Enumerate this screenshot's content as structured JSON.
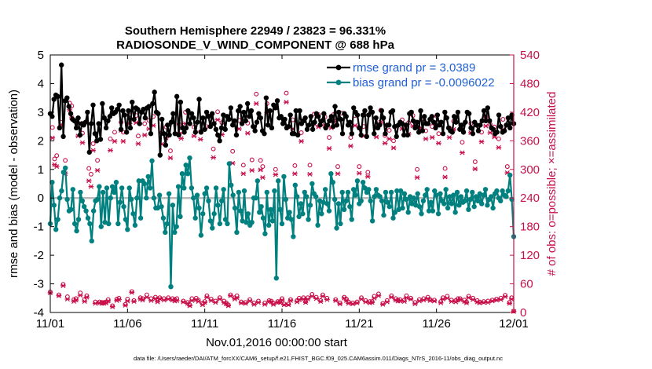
{
  "chart_data": {
    "type": "line",
    "title": "Southern Hemisphere 22949 / 23823 = 96.331%",
    "subtitle": "RADIOSONDE_V_WIND_COMPONENT @ 688 hPa",
    "xlabel": "Nov.01,2016 00:00:00 start",
    "ylabel": "rmse and bias (model - observation)",
    "ylabel_right": "# of obs: o=possible; ×=assimilated",
    "footnote": "data file: /Users/raeder/DAI/ATM_forcXX/CAM6_setup/f.e21.FHIST_BGC.f09_025.CAM6assim.011/Diags_NTrS_2016-11/obs_diag_output.nc",
    "xlim": [
      0,
      30
    ],
    "ylim": [
      -4,
      5
    ],
    "ylim_right": [
      0,
      540
    ],
    "x_tick_labels": [
      "11/01",
      "11/06",
      "11/11",
      "11/16",
      "11/21",
      "11/26",
      "12/01"
    ],
    "y_tick_labels": [
      "5",
      "4",
      "3",
      "2",
      "1",
      "0",
      "-1",
      "-2",
      "-3",
      "-4"
    ],
    "y_right_tick_labels": [
      "540",
      "480",
      "420",
      "360",
      "300",
      "240",
      "180",
      "120",
      "60",
      "0"
    ],
    "legend": [
      "rmse grand pr = 3.0389",
      "bias grand pr = -0.0096022"
    ],
    "colors": {
      "rmse": "#000000",
      "bias": "#00807f",
      "obs": "#c8104a",
      "zero_line": "#b8b8b8"
    },
    "series": [
      {
        "name": "rmse",
        "values": [
          2.95,
          2.85,
          3.45,
          3.6,
          3.55,
          2.45,
          4.65,
          2.15,
          3.4,
          3.5,
          3.2,
          2.95,
          2.75,
          2.7,
          2.45,
          2.8,
          2.2,
          2.6,
          2.55,
          2.65,
          3.0,
          1.6,
          2.6,
          3.25,
          2.25,
          2.0,
          2.6,
          2.05,
          3.3,
          2.8,
          2.45,
          2.7,
          2.85,
          3.15,
          2.95,
          3.0,
          3.1,
          3.25,
          2.4,
          3.05,
          2.9,
          2.3,
          3.05,
          2.45,
          3.35,
          2.75,
          3.15,
          3.1,
          2.6,
          3.0,
          3.1,
          2.8,
          3.15,
          3.2,
          2.25,
          3.3,
          3.7,
          3.0,
          2.95,
          1.5,
          2.75,
          2.25,
          1.85,
          2.55,
          2.2,
          2.65,
          2.95,
          2.25,
          3.55,
          2.2,
          3.35,
          2.45,
          2.3,
          2.45,
          3.05,
          2.6,
          2.95,
          2.8,
          2.3,
          2.65,
          3.45,
          2.3,
          2.8,
          2.4,
          3.0,
          2.85,
          2.5,
          2.95,
          2.6,
          2.4,
          2.2,
          2.0,
          2.45,
          2.9,
          2.4,
          2.85,
          2.75,
          3.15,
          2.55,
          2.7,
          2.2,
          3.05,
          3.2,
          2.6,
          3.0,
          2.7,
          3.3,
          2.85,
          3.05,
          2.5,
          2.35,
          2.65,
          2.95,
          2.8,
          2.35,
          2.25,
          3.5,
          2.55,
          3.05,
          2.45,
          3.25,
          3.15,
          3.4,
          2.8,
          2.85,
          2.6,
          2.75,
          2.45,
          2.5,
          2.9,
          2.25,
          2.25,
          3.05,
          2.2,
          3.05,
          2.6,
          2.7,
          2.8,
          2.4,
          2.55,
          2.85,
          2.4,
          2.65,
          2.95,
          2.85,
          2.55,
          2.7,
          2.95,
          2.45,
          2.55,
          2.7,
          2.85,
          2.5,
          3.2,
          2.55,
          3.0,
          2.75,
          2.25,
          2.95,
          2.85,
          2.55,
          2.65,
          2.25,
          3.15,
          3.0,
          2.9,
          2.45,
          2.2,
          2.9,
          3.05,
          2.15,
          2.9,
          3.15,
          3.0,
          2.25,
          2.8,
          2.45,
          2.55,
          3.05,
          2.8,
          2.25,
          2.55,
          2.55,
          3.0,
          3.05,
          2.5,
          2.15,
          2.55,
          2.65,
          2.6,
          2.2,
          2.55,
          2.2,
          2.95,
          3.0,
          2.7,
          2.45,
          2.65,
          2.3,
          3.05,
          2.35,
          2.85,
          2.6,
          2.6,
          2.75,
          2.85,
          2.65,
          2.45,
          2.9,
          2.55,
          2.65,
          2.25,
          3.0,
          2.8,
          2.45,
          2.35,
          2.3,
          2.85,
          2.65,
          3.0,
          2.4,
          2.55,
          2.3,
          2.65,
          3.0,
          2.95,
          2.45,
          2.25,
          2.65,
          2.55,
          2.35,
          2.55,
          2.7,
          3.05,
          2.7,
          3.15,
          2.7,
          2.45,
          2.4,
          2.25,
          2.3,
          2.9,
          2.5,
          2.3,
          2.35,
          2.55,
          2.8,
          2.45,
          2.9,
          2.6
        ]
      },
      {
        "name": "bias",
        "values": [
          -0.9,
          0.55,
          -0.25,
          -1.1,
          -0.75,
          0.0,
          0.25,
          0.9,
          1.05,
          -0.05,
          -0.45,
          -0.4,
          0.3,
          -0.9,
          -1.15,
          -0.75,
          0.2,
          -0.1,
          -0.3,
          -0.45,
          -0.7,
          -0.9,
          -1.5,
          -0.45,
          -0.1,
          -0.05,
          0.4,
          -1.0,
          0.2,
          -0.85,
          0.35,
          -0.9,
          0.0,
          0.4,
          0.2,
          0.55,
          -0.9,
          -0.15,
          0.35,
          -0.3,
          -0.75,
          -1.1,
          0.35,
          -0.05,
          -0.55,
          -0.95,
          0.0,
          0.6,
          -0.7,
          0.6,
          0.5,
          0.0,
          0.75,
          0.35,
          1.3,
          0.0,
          -0.35,
          -0.35,
          0.1,
          -0.3,
          -0.7,
          -1.2,
          -0.9,
          0.15,
          -3.1,
          -0.25,
          -1.2,
          -1.0,
          0.4,
          -0.65,
          0.85,
          0.35,
          1.15,
          0.85,
          1.4,
          0.35,
          0.0,
          -0.7,
          0.1,
          -0.35,
          -1.3,
          -0.55,
          0.15,
          0.35,
          -0.1,
          -0.8,
          -1.05,
          -0.55,
          0.35,
          -0.25,
          -0.9,
          -0.1,
          0.3,
          -0.75,
          -0.9,
          1.2,
          0.45,
          0.1,
          -0.35,
          -1.2,
          0.2,
          -0.45,
          -0.8,
          0.25,
          -0.85,
          -0.55,
          -0.95,
          -0.85,
          0.0,
          0.0,
          0.6,
          -0.5,
          -0.3,
          -0.7,
          -1.25,
          0.2,
          -0.95,
          -0.4,
          -0.8,
          0.25,
          -2.8,
          0.6,
          -0.4,
          -0.9,
          0.75,
          -0.05,
          -0.7,
          -0.5,
          -0.75,
          -1.35,
          0.45,
          0.05,
          -0.65,
          -0.2,
          -0.55,
          0.2,
          0.05,
          -0.75,
          -0.25,
          0.5,
          0.15,
          0.05,
          -0.95,
          -0.1,
          -0.55,
          -0.15,
          0.3,
          -0.2,
          -0.45,
          0.85,
          0.55,
          -0.05,
          -1.05,
          -0.2,
          -0.9,
          0.2,
          -0.4,
          -0.1,
          0.2,
          -0.3,
          -0.75,
          0.3,
          0.1,
          0.6,
          -0.2,
          -0.1,
          0.55,
          0.35,
          0.2,
          0.3,
          -0.1,
          -0.8,
          0.05,
          0.3,
          0.1,
          0.05,
          -0.1,
          -0.6,
          0.2,
          -0.15,
          -0.3,
          0.2,
          -0.7,
          -0.5,
          0.25,
          -0.4,
          0.25,
          -0.35,
          0.15,
          -0.05,
          -0.5,
          0.05,
          -0.2,
          0.0,
          -0.25,
          0.15,
          -0.3,
          -0.55,
          -0.1,
          0.1,
          0.3,
          -0.45,
          -0.15,
          -0.45,
          0.25,
          0.1,
          -0.55,
          0.15,
          -0.1,
          -0.2,
          0.3,
          -0.35,
          0.05,
          -0.2,
          0.1,
          -0.5,
          0.2,
          -0.25,
          0.05,
          -0.15,
          -0.1,
          0.25,
          -0.4,
          -0.05,
          0.2,
          -0.3,
          0.05,
          -0.1,
          0.15,
          -0.2,
          0.1,
          0.3,
          -0.25,
          -0.05,
          0.05,
          -0.35,
          0.15,
          0.25,
          0.0,
          -0.1,
          0.25,
          0.1,
          0.05,
          0.25,
          0.8,
          -0.05,
          -1.35
        ]
      },
      {
        "name": "possible",
        "values": [
          43,
          388,
          322,
          329,
          37,
          399,
          59,
          319,
          33,
          439,
          433,
          27,
          29,
          397,
          41,
          376,
          27,
          35,
          302,
          290,
          354,
          22,
          319,
          22,
          21,
          21,
          22,
          27,
          364,
          14,
          378,
          28,
          30,
          399,
          378,
          17,
          28,
          414,
          44,
          25,
          413,
          370,
          31,
          29,
          396,
          37,
          403,
          29,
          411,
          32,
          25,
          31,
          377,
          29,
          389,
          31,
          339,
          29,
          27,
          29,
          395,
          380,
          24,
          420,
          21,
          16,
          29,
          389,
          30,
          26,
          379,
          19,
          23,
          35,
          412,
          28,
          343,
          24,
          421,
          31,
          398,
          24,
          20,
          16,
          37,
          338,
          31,
          35,
          403,
          22,
          309,
          21,
          397,
          27,
          320,
          20,
          458,
          24,
          319,
          306,
          20,
          438,
          25,
          24,
          19,
          300,
          23,
          23,
          29,
          18,
          460,
          18,
          27,
          404,
          308,
          25,
          30,
          377,
          31,
          23,
          31,
          309,
          38,
          416,
          32,
          415,
          25,
          37,
          410,
          30,
          367,
          405,
          415,
          27,
          306,
          20,
          418,
          32,
          28,
          22,
          367,
          20,
          413,
          22,
          306,
          31,
          390,
          25,
          294,
          23,
          23,
          34,
          388,
          39,
          424,
          19,
          371,
          25,
          382,
          35,
          360,
          29,
          26,
          27,
          404,
          26,
          35,
          398,
          30,
          413,
          21,
          300,
          27,
          405,
          29,
          381,
          32,
          27,
          390,
          26,
          412,
          375,
          23,
          31,
          302,
          34,
          387,
          26,
          401,
          25,
          29,
          29,
          357,
          26,
          22,
          34,
          396,
          30,
          316,
          25,
          22,
          378,
          23,
          410,
          24,
          395,
          26,
          389,
          28,
          364,
          30,
          405,
          36,
          306,
          21,
          31,
          3
        ]
      },
      {
        "name": "assimilated",
        "values": [
          41,
          366,
          310,
          306,
          35,
          393,
          56,
          291,
          28,
          425,
          408,
          23,
          26,
          370,
          36,
          356,
          23,
          32,
          276,
          264,
          340,
          19,
          298,
          20,
          19,
          19,
          20,
          24,
          340,
          12,
          359,
          25,
          27,
          382,
          359,
          15,
          24,
          396,
          42,
          23,
          398,
          354,
          28,
          26,
          372,
          32,
          385,
          25,
          392,
          29,
          22,
          29,
          353,
          26,
          366,
          28,
          324,
          26,
          24,
          25,
          374,
          365,
          22,
          396,
          19,
          14,
          25,
          370,
          27,
          23,
          363,
          16,
          21,
          32,
          390,
          25,
          325,
          21,
          404,
          28,
          373,
          21,
          18,
          14,
          35,
          313,
          28,
          31,
          385,
          20,
          291,
          19,
          376,
          24,
          298,
          17,
          438,
          21,
          299,
          283,
          17,
          419,
          23,
          22,
          17,
          289,
          21,
          21,
          26,
          16,
          441,
          16,
          25,
          385,
          291,
          22,
          27,
          359,
          28,
          21,
          28,
          290,
          34,
          396,
          29,
          389,
          23,
          34,
          392,
          27,
          344,
          387,
          401,
          25,
          291,
          18,
          404,
          30,
          25,
          19,
          349,
          18,
          392,
          20,
          292,
          28,
          370,
          22,
          285,
          20,
          21,
          30,
          368,
          35,
          399,
          17,
          355,
          22,
          364,
          32,
          345,
          26,
          24,
          24,
          385,
          23,
          31,
          374,
          28,
          391,
          18,
          283,
          24,
          387,
          26,
          364,
          29,
          25,
          367,
          24,
          393,
          355,
          20,
          28,
          284,
          30,
          367,
          23,
          384,
          22,
          26,
          27,
          335,
          23,
          20,
          31,
          377,
          27,
          301,
          22,
          20,
          358,
          21,
          391,
          21,
          377,
          24,
          368,
          26,
          346,
          27,
          384,
          33,
          293,
          19,
          28,
          2
        ]
      }
    ]
  }
}
